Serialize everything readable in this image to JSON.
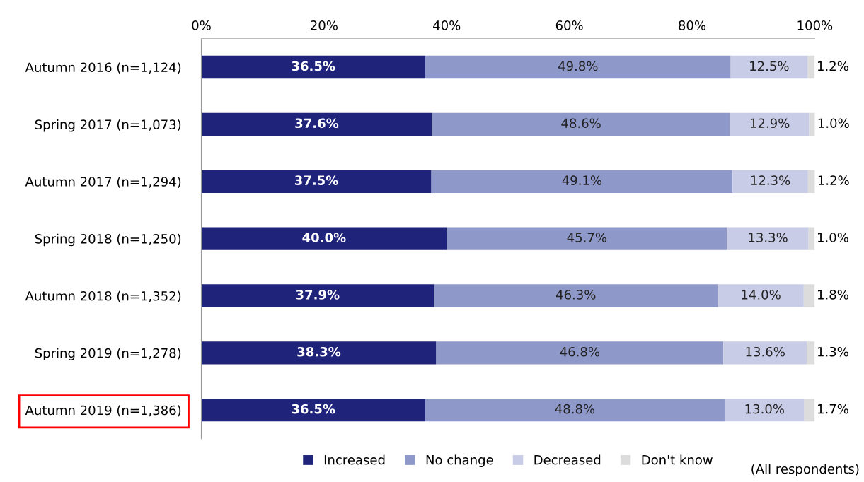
{
  "chart_data": {
    "type": "bar",
    "orientation": "horizontal",
    "stacked": true,
    "categories": [
      "Autumn 2016 (n=1,124)",
      "Spring 2017 (n=1,073)",
      "Autumn 2017 (n=1,294)",
      "Spring 2018 (n=1,250)",
      "Autumn 2018 (n=1,352)",
      "Spring 2019 (n=1,278)",
      "Autumn 2019 (n=1,386)"
    ],
    "series": [
      {
        "name": "Increased",
        "color": "#1f237a",
        "values": [
          36.5,
          37.6,
          37.5,
          40.0,
          37.9,
          38.3,
          36.5
        ],
        "value_labels": [
          "36.5%",
          "37.6%",
          "37.5%",
          "40.0%",
          "37.9%",
          "38.3%",
          "36.5%"
        ]
      },
      {
        "name": "No change",
        "color": "#8e98c9",
        "values": [
          49.8,
          48.6,
          49.1,
          45.7,
          46.3,
          46.8,
          48.8
        ],
        "value_labels": [
          "49.8%",
          "48.6%",
          "49.1%",
          "45.7%",
          "46.3%",
          "46.8%",
          "48.8%"
        ]
      },
      {
        "name": "Decreased",
        "color": "#c9cce6",
        "values": [
          12.5,
          12.9,
          12.3,
          13.3,
          14.0,
          13.6,
          13.0
        ],
        "value_labels": [
          "12.5%",
          "12.9%",
          "12.3%",
          "13.3%",
          "14.0%",
          "13.6%",
          "13.0%"
        ]
      },
      {
        "name": "Don't know",
        "color": "#dcdcdc",
        "values": [
          1.2,
          1.0,
          1.2,
          1.0,
          1.8,
          1.3,
          1.7
        ],
        "value_labels": [
          "1.2%",
          "1.0%",
          "1.2%",
          "1.0%",
          "1.8%",
          "1.3%",
          "1.7%"
        ]
      }
    ],
    "xlim": [
      0,
      100
    ],
    "xticks": [
      {
        "value": 0,
        "label": "0%"
      },
      {
        "value": 20,
        "label": "20%"
      },
      {
        "value": 40,
        "label": "40%"
      },
      {
        "value": 60,
        "label": "60%"
      },
      {
        "value": 80,
        "label": "80%"
      },
      {
        "value": 100,
        "label": "100%"
      }
    ],
    "legend": "bottom",
    "grid": false,
    "annotations": [
      "(All respondents)"
    ]
  }
}
